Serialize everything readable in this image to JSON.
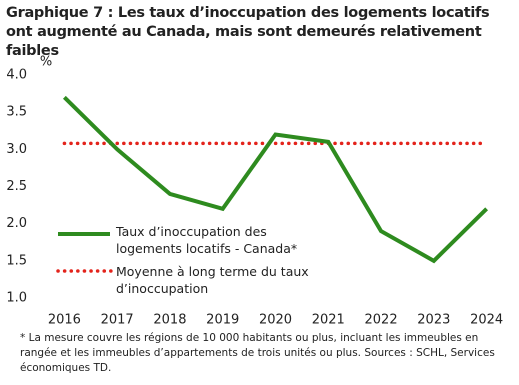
{
  "chart_data": {
    "type": "line",
    "title": "Graphique 7 : Les taux d’inoccupation des logements locatifs ont augmenté au Canada, mais sont demeurés relativement faibles",
    "y_label": "%",
    "categories": [
      "2016",
      "2017",
      "2018",
      "2019",
      "2020",
      "2021",
      "2022",
      "2023",
      "2024"
    ],
    "series": [
      {
        "name": "Taux d’inoccupation des logements locatifs - Canada*",
        "color": "#2e8b1f",
        "values": [
          3.7,
          3.0,
          2.4,
          2.2,
          3.2,
          3.1,
          1.9,
          1.5,
          2.2
        ]
      }
    ],
    "reference_line": {
      "name": "Moyenne à long terme du taux d’inoccupation",
      "color": "#e3231b",
      "value": 3.08
    },
    "ylim": [
      1.0,
      4.0
    ],
    "yticks": [
      {
        "value": 1,
        "label": "1.0"
      },
      1.5,
      {
        "value": 2,
        "label": "2.0"
      },
      2.5,
      {
        "value": 3,
        "label": "3.0"
      },
      3.5,
      {
        "value": 4,
        "label": "4.0"
      }
    ],
    "legend": true,
    "footnote": "* La mesure couvre les régions de 10 000 habitants ou plus, incluant les immeubles en rangée et les immeubles d’appartements de trois unités ou plus. Sources : SCHL, Services économiques TD."
  }
}
